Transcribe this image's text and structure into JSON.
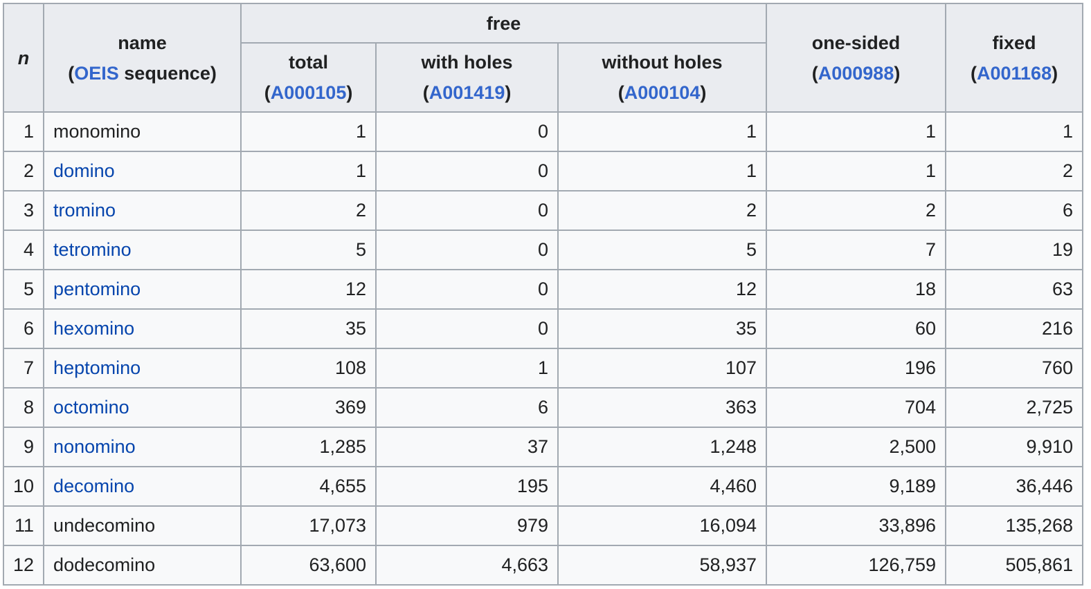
{
  "header": {
    "n_label": "n",
    "name_label": "name",
    "name_sub_pre": "(",
    "name_sub_link": "OEIS",
    "name_sub_post": " sequence)",
    "free_label": "free",
    "total_label": "total",
    "total_seq": "A000105",
    "holes_label": "with holes",
    "holes_seq": "A001419",
    "noholes_label": "without holes",
    "noholes_seq": "A000104",
    "onesided_label": "one-sided",
    "onesided_seq": "A000988",
    "fixed_label": "fixed",
    "fixed_seq": "A001168",
    "open_paren": "(",
    "close_paren": ")"
  },
  "rows": [
    {
      "n": "1",
      "name": "monomino",
      "link": false,
      "total": "1",
      "with_holes": "0",
      "without_holes": "1",
      "one_sided": "1",
      "fixed": "1"
    },
    {
      "n": "2",
      "name": "domino",
      "link": true,
      "total": "1",
      "with_holes": "0",
      "without_holes": "1",
      "one_sided": "1",
      "fixed": "2"
    },
    {
      "n": "3",
      "name": "tromino",
      "link": true,
      "total": "2",
      "with_holes": "0",
      "without_holes": "2",
      "one_sided": "2",
      "fixed": "6"
    },
    {
      "n": "4",
      "name": "tetromino",
      "link": true,
      "total": "5",
      "with_holes": "0",
      "without_holes": "5",
      "one_sided": "7",
      "fixed": "19"
    },
    {
      "n": "5",
      "name": "pentomino",
      "link": true,
      "total": "12",
      "with_holes": "0",
      "without_holes": "12",
      "one_sided": "18",
      "fixed": "63"
    },
    {
      "n": "6",
      "name": "hexomino",
      "link": true,
      "total": "35",
      "with_holes": "0",
      "without_holes": "35",
      "one_sided": "60",
      "fixed": "216"
    },
    {
      "n": "7",
      "name": "heptomino",
      "link": true,
      "total": "108",
      "with_holes": "1",
      "without_holes": "107",
      "one_sided": "196",
      "fixed": "760"
    },
    {
      "n": "8",
      "name": "octomino",
      "link": true,
      "total": "369",
      "with_holes": "6",
      "without_holes": "363",
      "one_sided": "704",
      "fixed": "2,725"
    },
    {
      "n": "9",
      "name": "nonomino",
      "link": true,
      "total": "1,285",
      "with_holes": "37",
      "without_holes": "1,248",
      "one_sided": "2,500",
      "fixed": "9,910"
    },
    {
      "n": "10",
      "name": "decomino",
      "link": true,
      "total": "4,655",
      "with_holes": "195",
      "without_holes": "4,460",
      "one_sided": "9,189",
      "fixed": "36,446"
    },
    {
      "n": "11",
      "name": "undecomino",
      "link": false,
      "total": "17,073",
      "with_holes": "979",
      "without_holes": "16,094",
      "one_sided": "33,896",
      "fixed": "135,268"
    },
    {
      "n": "12",
      "name": "dodecomino",
      "link": false,
      "total": "63,600",
      "with_holes": "4,663",
      "without_holes": "58,937",
      "one_sided": "126,759",
      "fixed": "505,861"
    }
  ]
}
